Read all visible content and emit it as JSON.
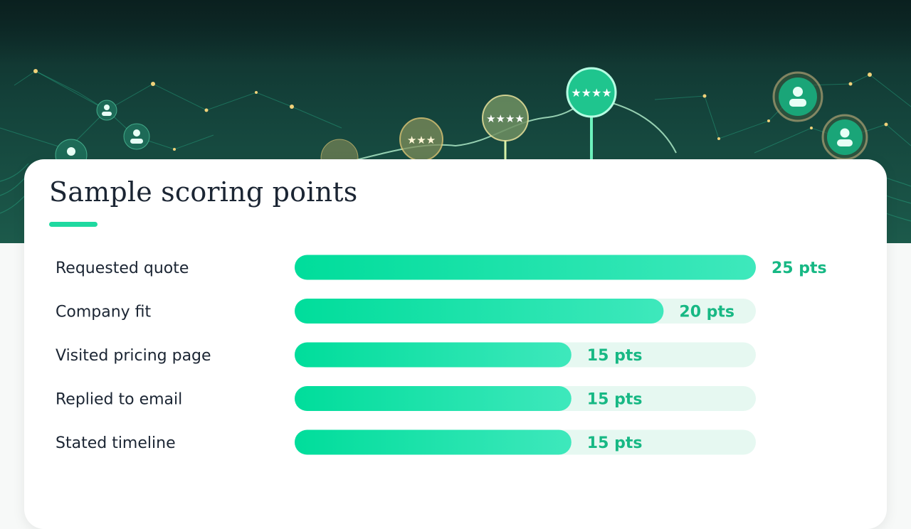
{
  "page": {
    "title": "Sample scoring points"
  },
  "chart_data": {
    "type": "bar",
    "orientation": "horizontal",
    "title": "Sample scoring points",
    "categories": [
      "Requested quote",
      "Company fit",
      "Visited pricing page",
      "Replied to email",
      "Stated timeline"
    ],
    "values": [
      25,
      20,
      15,
      15,
      15
    ],
    "value_labels": [
      "25 pts",
      "20 pts",
      "15 pts",
      "15 pts",
      "15 pts"
    ],
    "xlim": [
      0,
      25
    ],
    "grid": false,
    "legend": "none",
    "colors": {
      "bar_start": "#00dd9b",
      "bar_end": "#3ee8bc",
      "track": "#e6f8f1",
      "value_text": "#17b884",
      "label_text": "#1b2533",
      "accent": "#1fd9a0"
    }
  }
}
